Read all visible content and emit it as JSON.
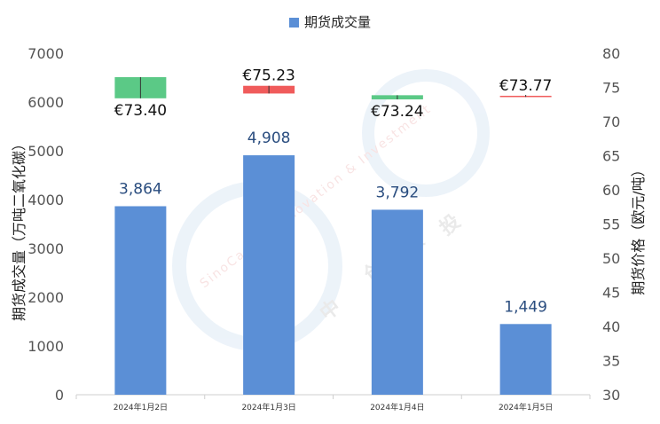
{
  "chart_data": {
    "type": "bar",
    "legend": "期货成交量",
    "ylabel_left": "期货成交量（万吨二氧化碳）",
    "ylabel_right": "期货价格（欧元/吨）",
    "categories": [
      "2024年1月2日",
      "2024年1月3日",
      "2024年1月4日",
      "2024年1月5日"
    ],
    "series": [
      {
        "name": "期货成交量",
        "values": [
          3864,
          4908,
          3792,
          1449
        ],
        "labels": [
          "3,864",
          "4,908",
          "3,792",
          "1,449"
        ]
      }
    ],
    "price_candles": [
      {
        "open": 76.5,
        "close": 73.4,
        "high": 76.5,
        "low": 73.4,
        "label": "€73.40",
        "label_position": "below",
        "color": "#5BC986"
      },
      {
        "open": 75.23,
        "close": 74.1,
        "high": 75.23,
        "low": 74.1,
        "label": "€75.23",
        "label_position": "above",
        "color": "#F05B5B"
      },
      {
        "open": 73.85,
        "close": 73.24,
        "high": 73.85,
        "low": 73.24,
        "label": "€73.24",
        "label_position": "below",
        "color": "#5BC986"
      },
      {
        "open": 73.77,
        "close": 73.77,
        "high": 73.9,
        "low": 73.6,
        "label": "€73.77",
        "label_position": "above",
        "color": "#F05B5B"
      }
    ],
    "ylim_left": [
      0,
      7000
    ],
    "yticks_left": [
      0,
      1000,
      2000,
      3000,
      4000,
      5000,
      6000,
      7000
    ],
    "ylim_right": [
      30,
      80
    ],
    "yticks_right": [
      30,
      35,
      40,
      45,
      50,
      55,
      60,
      65,
      70,
      75,
      80
    ],
    "bar_color": "#5B8FD6",
    "grid": false
  },
  "watermark": {
    "text_arc": "SinoCarbon Innovation & Investment",
    "text_cn": [
      "中",
      "创",
      "碳",
      "投"
    ]
  }
}
